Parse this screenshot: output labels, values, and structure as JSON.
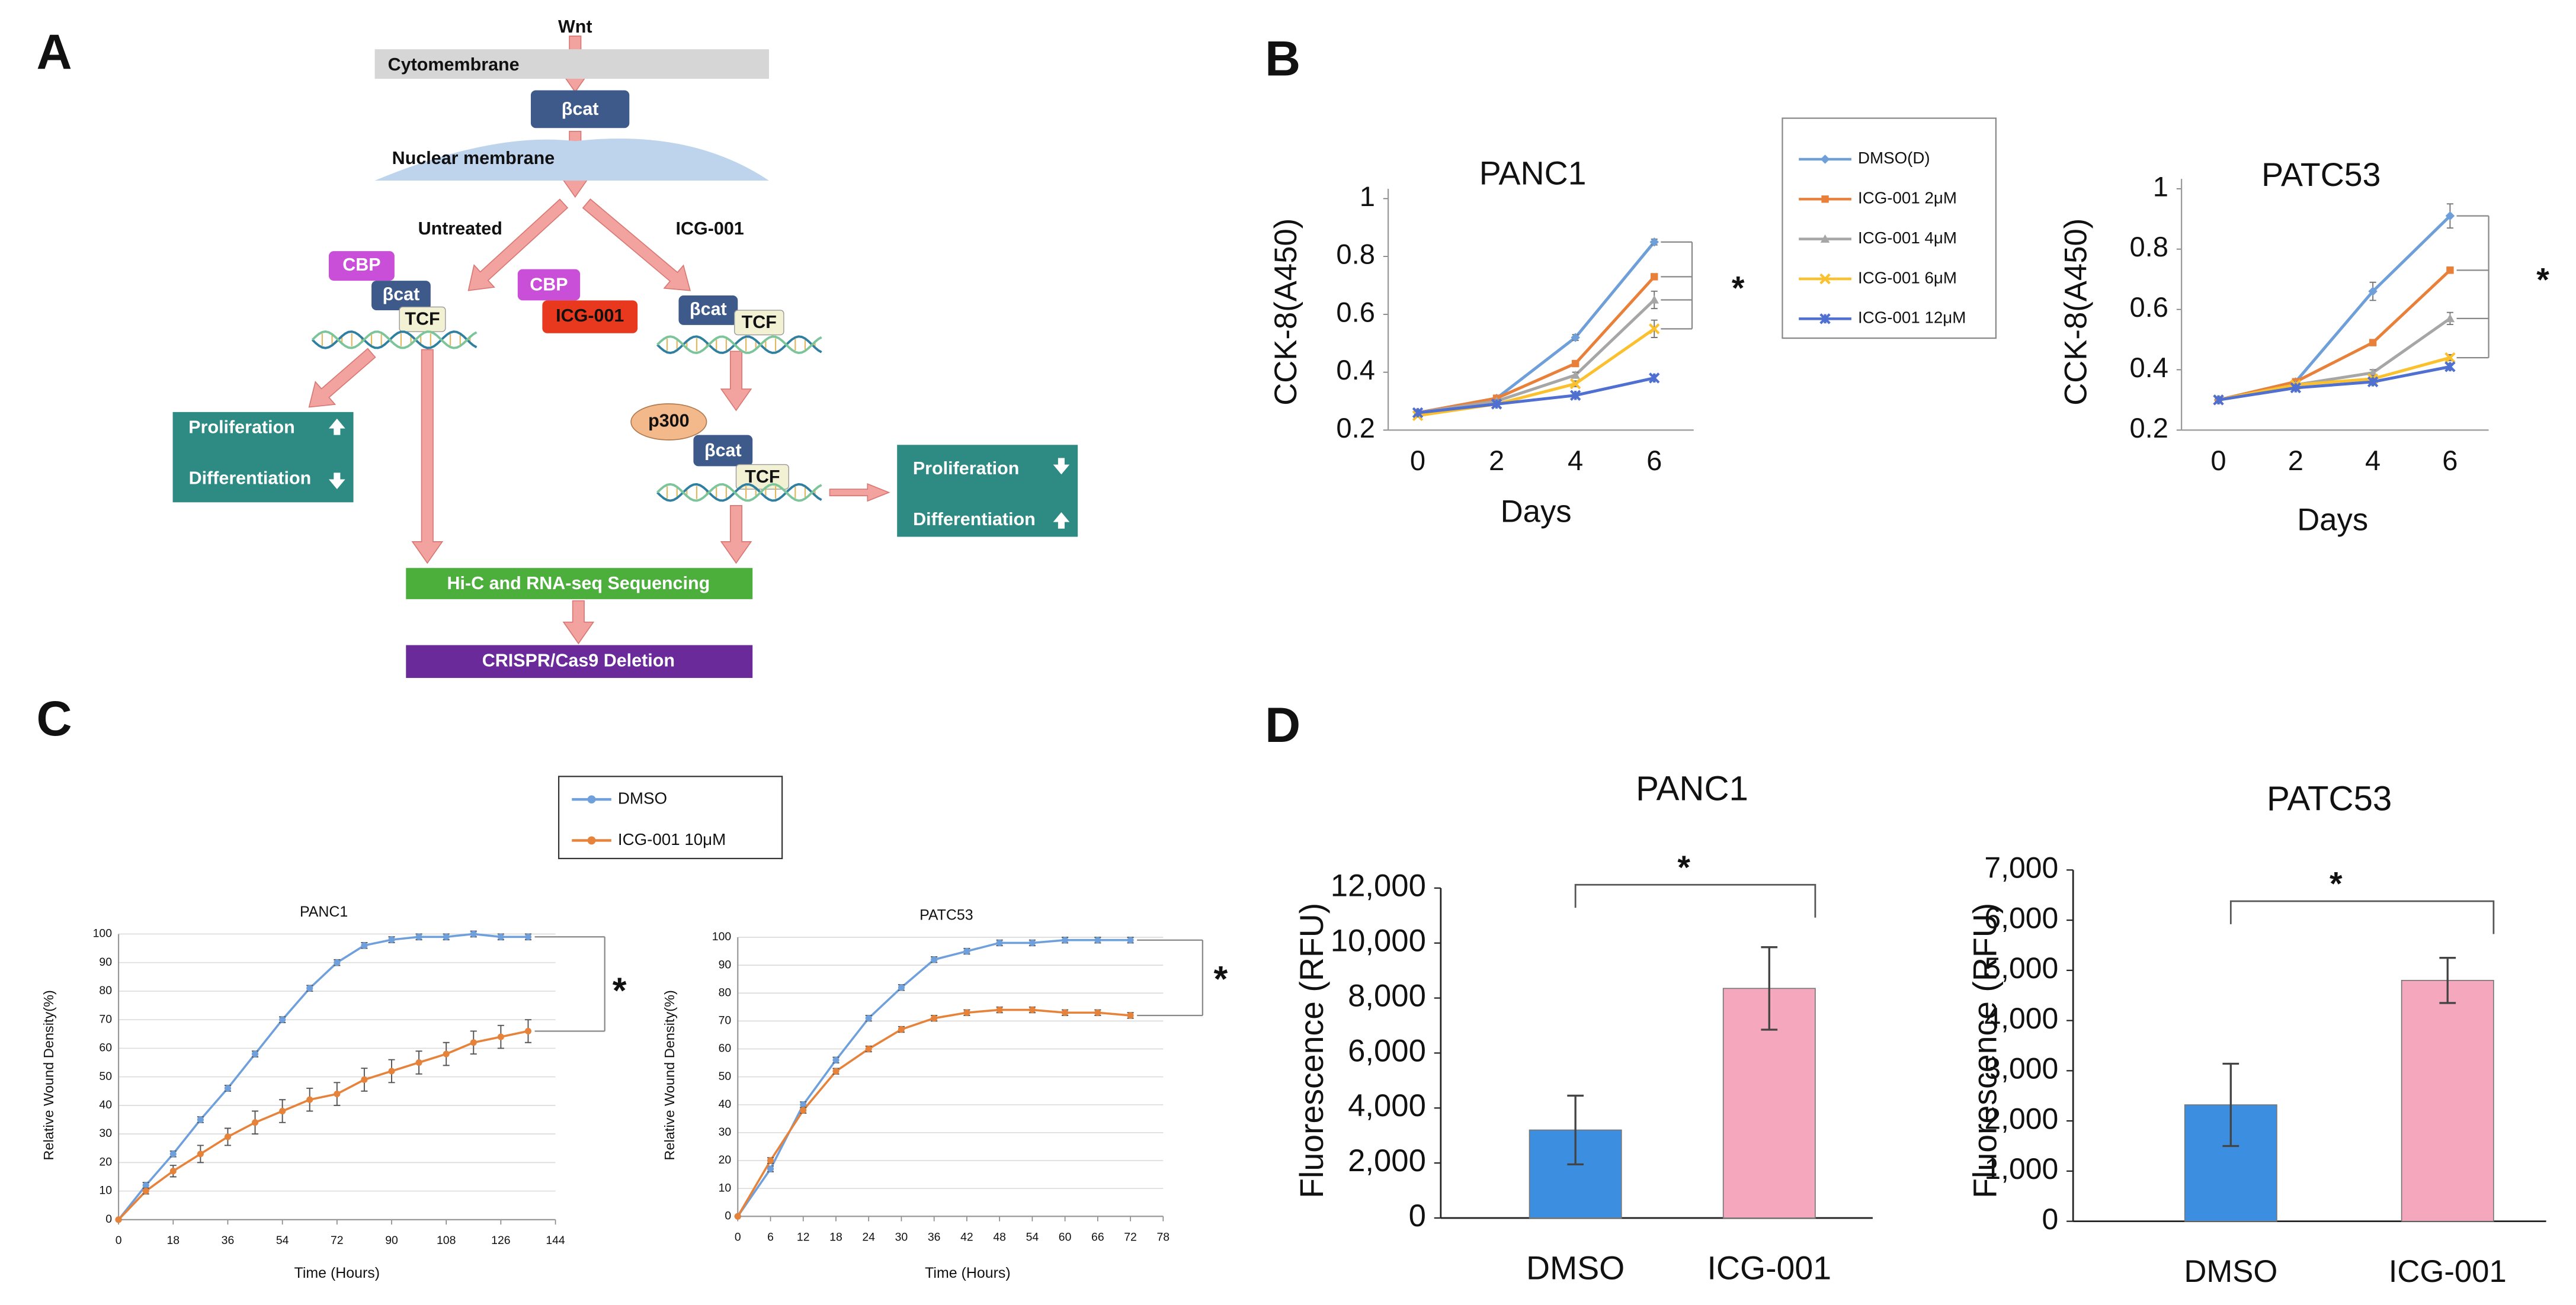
{
  "panel_labels": [
    "A",
    "B",
    "C",
    "D"
  ],
  "diagram": {
    "wnt": "Wnt",
    "cytomembrane": "Cytomembrane",
    "membrane_bcat": "βcat",
    "nuclear_membrane": "Nuclear membrane",
    "untreated": "Untreated",
    "treated": "ICG-001",
    "untreated_complex": [
      "CBP",
      "βcat",
      "TCF"
    ],
    "inhibitor_complex": [
      "CBP",
      "ICG-001"
    ],
    "treated_complex": [
      "βcat",
      "TCF"
    ],
    "p300_complex": [
      "p300",
      "βcat",
      "TCF"
    ],
    "untreated_outcome": [
      "Proliferation",
      "Differentiation"
    ],
    "treated_outcome": [
      "Proliferation",
      "Differentiation"
    ],
    "sequencing": "Hi-C and RNA-seq Sequencing",
    "deletion": "CRISPR/Cas9 Deletion"
  },
  "chart_data": [
    {
      "type": "line",
      "title": "PANC1",
      "x_label": "Days",
      "y_label": "CCK-8(A450)",
      "categories": [
        "0",
        "2",
        "4",
        "6"
      ],
      "ylim": [
        0.2,
        1
      ],
      "yticks": [
        0.2,
        0.4,
        0.6,
        0.8,
        1
      ],
      "grid": false,
      "annotations": [
        "*"
      ],
      "series": [
        {
          "name": "DMSO(D)",
          "color": "#6f9fd8",
          "values": [
            0.26,
            0.31,
            0.52,
            0.85
          ],
          "errors": [
            0.005,
            0.005,
            0.01,
            0.01
          ]
        },
        {
          "name": "ICG-001 2μM",
          "color": "#e8803a",
          "values": [
            0.26,
            0.31,
            0.43,
            0.73
          ],
          "errors": [
            0.005,
            0.005,
            0.01,
            0.01
          ]
        },
        {
          "name": "ICG-001 4μM",
          "color": "#a6a6a6",
          "values": [
            0.26,
            0.3,
            0.39,
            0.65
          ],
          "errors": [
            0.005,
            0.005,
            0.01,
            0.03
          ]
        },
        {
          "name": "ICG-001 6μM",
          "color": "#fbc02d",
          "values": [
            0.25,
            0.29,
            0.36,
            0.55
          ],
          "errors": [
            0.005,
            0.005,
            0.01,
            0.03
          ]
        },
        {
          "name": "ICG-001 12μM",
          "color": "#4f6fd1",
          "values": [
            0.26,
            0.29,
            0.32,
            0.38
          ],
          "errors": [
            0.005,
            0.005,
            0.005,
            0.01
          ]
        }
      ]
    },
    {
      "type": "line",
      "title": "PATC53",
      "x_label": "Days",
      "y_label": "CCK-8(A450)",
      "categories": [
        "0",
        "2",
        "4",
        "6"
      ],
      "ylim": [
        0.2,
        1
      ],
      "yticks": [
        0.2,
        0.4,
        0.6,
        0.8,
        1
      ],
      "grid": false,
      "annotations": [
        "*"
      ],
      "series": [
        {
          "color": "#6f9fd8",
          "values": [
            0.3,
            0.36,
            0.66,
            0.91
          ],
          "errors": [
            0.005,
            0.01,
            0.03,
            0.04
          ]
        },
        {
          "color": "#e8803a",
          "values": [
            0.3,
            0.36,
            0.49,
            0.73
          ],
          "errors": [
            0.005,
            0.01,
            0.01,
            0.01
          ]
        },
        {
          "color": "#a6a6a6",
          "values": [
            0.3,
            0.35,
            0.39,
            0.57
          ],
          "errors": [
            0.005,
            0.01,
            0.01,
            0.02
          ]
        },
        {
          "color": "#fbc02d",
          "values": [
            0.3,
            0.35,
            0.37,
            0.44
          ],
          "errors": [
            0.005,
            0.005,
            0.01,
            0.01
          ]
        },
        {
          "color": "#4f6fd1",
          "values": [
            0.3,
            0.34,
            0.36,
            0.41
          ],
          "errors": [
            0.005,
            0.005,
            0.01,
            0.01
          ]
        }
      ]
    },
    {
      "type": "line",
      "title": "PANC1",
      "x_label": "Time (Hours)",
      "y_label": "Relative Wound Density(%)",
      "x": [
        0,
        9,
        18,
        27,
        36,
        45,
        54,
        63,
        72,
        81,
        90,
        99,
        108,
        117,
        126,
        135
      ],
      "xlim": [
        0,
        144
      ],
      "xticks": [
        0,
        18,
        36,
        54,
        72,
        90,
        108,
        126,
        144
      ],
      "ylim": [
        0,
        100
      ],
      "yticks": [
        0,
        10,
        20,
        30,
        40,
        50,
        60,
        70,
        80,
        90,
        100
      ],
      "grid": true,
      "annotations": [
        "*"
      ],
      "series": [
        {
          "name": "DMSO",
          "color": "#6fa0dc",
          "values": [
            0,
            12,
            23,
            35,
            46,
            58,
            70,
            81,
            90,
            96,
            98,
            99,
            99,
            100,
            99,
            99
          ],
          "errors": [
            0,
            1,
            1,
            1,
            1,
            1,
            1,
            1,
            1,
            1,
            1,
            1,
            1,
            1,
            1,
            1
          ]
        },
        {
          "name": "ICG-001 10μM",
          "color": "#e6823a",
          "values": [
            0,
            10,
            17,
            23,
            29,
            34,
            38,
            42,
            44,
            49,
            52,
            55,
            58,
            62,
            64,
            66
          ],
          "errors": [
            0,
            1,
            2,
            3,
            3,
            4,
            4,
            4,
            4,
            4,
            4,
            4,
            4,
            4,
            4,
            4
          ]
        }
      ]
    },
    {
      "type": "line",
      "title": "PATC53",
      "x_label": "Time (Hours)",
      "y_label": "Relative Wound Density(%)",
      "x": [
        0,
        6,
        12,
        18,
        24,
        30,
        36,
        42,
        48,
        54,
        60,
        66,
        72
      ],
      "xlim": [
        0,
        78
      ],
      "xticks": [
        0,
        6,
        12,
        18,
        24,
        30,
        36,
        42,
        48,
        54,
        60,
        66,
        72,
        78
      ],
      "ylim": [
        0,
        100
      ],
      "yticks": [
        0,
        10,
        20,
        30,
        40,
        50,
        60,
        70,
        80,
        90,
        100
      ],
      "grid": true,
      "annotations": [
        "*"
      ],
      "series": [
        {
          "color": "#6fa0dc",
          "values": [
            0,
            17,
            40,
            56,
            71,
            82,
            92,
            95,
            98,
            98,
            99,
            99,
            99
          ],
          "errors": [
            0,
            1,
            1,
            1,
            1,
            1,
            1,
            1,
            1,
            1,
            1,
            1,
            1
          ]
        },
        {
          "color": "#e6823a",
          "values": [
            0,
            20,
            38,
            52,
            60,
            67,
            71,
            73,
            74,
            74,
            73,
            73,
            72
          ],
          "errors": [
            0,
            1,
            1,
            1,
            1,
            1,
            1,
            1,
            1,
            1,
            1,
            1,
            1
          ]
        }
      ]
    },
    {
      "type": "bar",
      "title": "PANC1",
      "y_label": "Fluorescence (RFU)",
      "categories": [
        "DMSO",
        "ICG-001"
      ],
      "values": [
        3200,
        8350
      ],
      "errors": [
        1250,
        1500
      ],
      "colors": [
        "#3c8ee0",
        "#f4a7bd"
      ],
      "ylim": [
        0,
        12000
      ],
      "yticks": [
        0,
        {
          "value": 2000,
          "label": "2,000"
        },
        {
          "value": 4000,
          "label": "4,000"
        },
        {
          "value": 6000,
          "label": "6,000"
        },
        {
          "value": 8000,
          "label": "8,000"
        },
        {
          "value": 10000,
          "label": "10,000"
        },
        {
          "value": 12000,
          "label": "12,000"
        }
      ],
      "annotations": [
        "*"
      ]
    },
    {
      "type": "bar",
      "title": "PATC53",
      "y_label": "Fluorescence (RFU)",
      "categories": [
        "DMSO",
        "ICG-001"
      ],
      "values": [
        2320,
        4800
      ],
      "errors": [
        820,
        450
      ],
      "colors": [
        "#3c8ee0",
        "#f4a7bd"
      ],
      "ylim": [
        0,
        7000
      ],
      "yticks": [
        0,
        {
          "value": 1000,
          "label": "1,000"
        },
        {
          "value": 2000,
          "label": "2,000"
        },
        {
          "value": 3000,
          "label": "3,000"
        },
        {
          "value": 4000,
          "label": "4,000"
        },
        {
          "value": 5000,
          "label": "5,000"
        },
        {
          "value": 6000,
          "label": "6,000"
        },
        {
          "value": 7000,
          "label": "7,000"
        }
      ],
      "annotations": [
        "*"
      ]
    }
  ]
}
